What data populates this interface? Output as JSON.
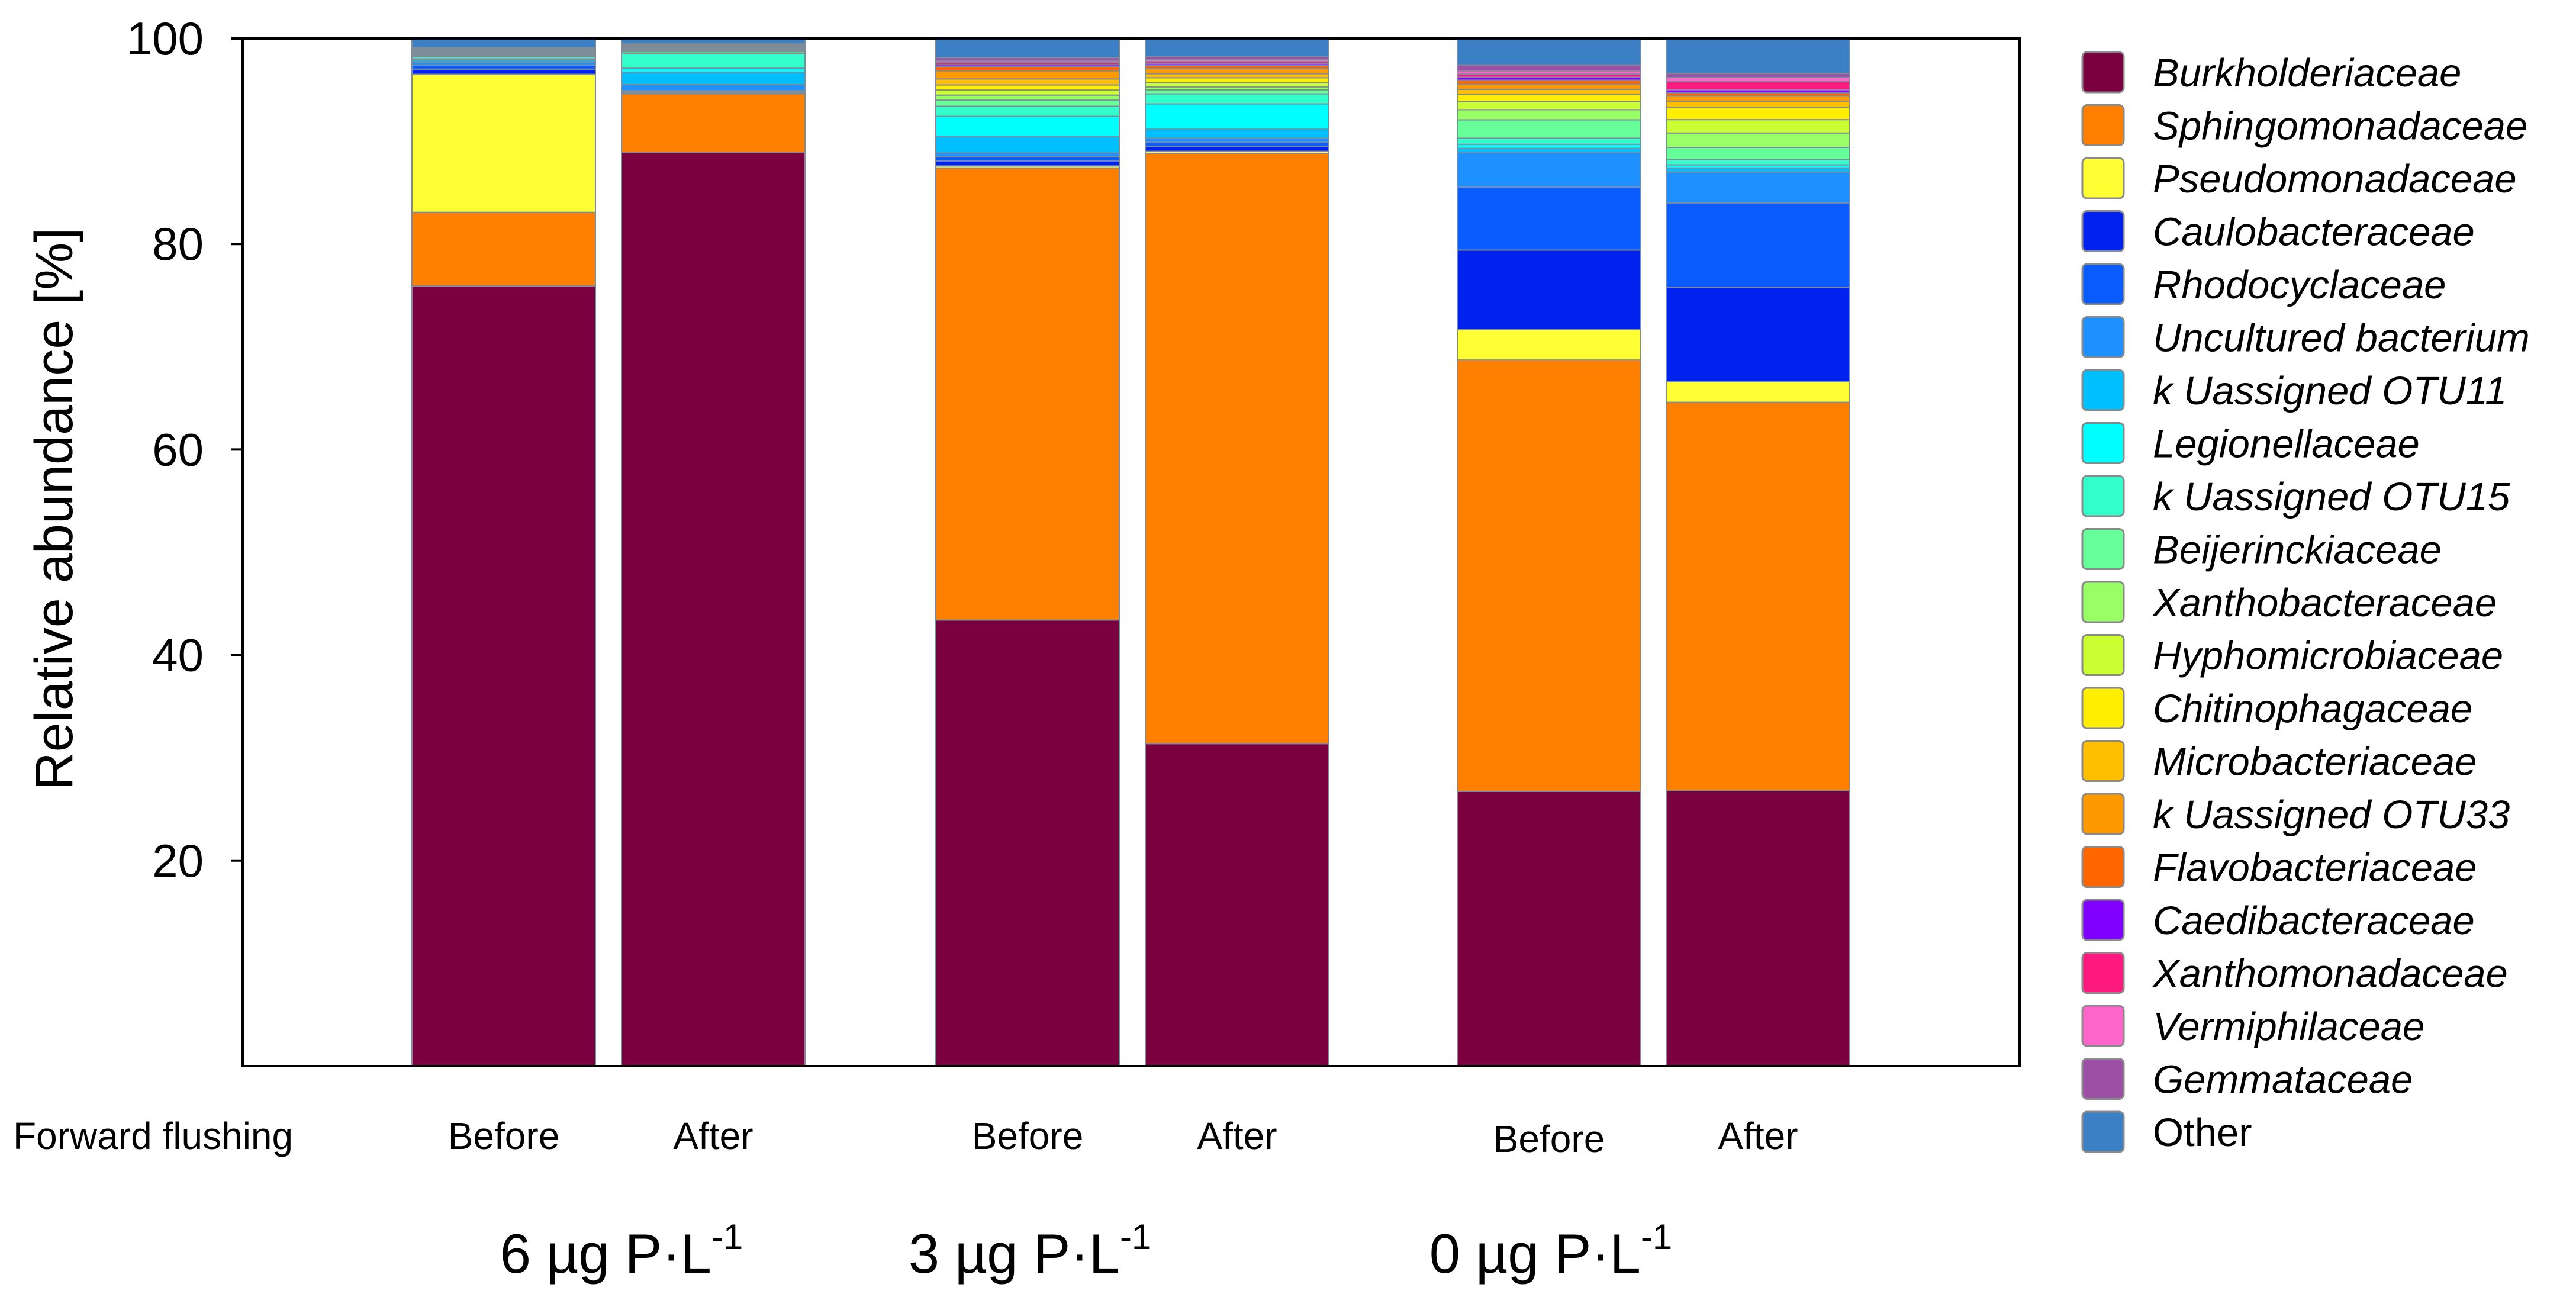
{
  "chart_data": {
    "type": "bar",
    "stacked": true,
    "ylabel": "Relative abundance [%]",
    "ylim": [
      0,
      100
    ],
    "yticks": [
      20,
      40,
      60,
      80,
      100
    ],
    "row_label": "Forward flushing",
    "categories": [
      "Before",
      "After",
      "Before",
      "After",
      "Before",
      "After"
    ],
    "groups": [
      {
        "label": "6 µg P·L",
        "sup": "-1"
      },
      {
        "label": "3 µg P·L",
        "sup": "-1"
      },
      {
        "label": "0 µg P·L",
        "sup": "-1"
      }
    ],
    "series": [
      {
        "name": "Burkholderiaceae",
        "italic": true,
        "color": "#7b0040",
        "values": [
          76.3,
          89.0,
          44.1,
          32.0,
          27.0,
          26.8
        ]
      },
      {
        "name": "Sphingomonadaceae",
        "italic": true,
        "color": "#ff8000",
        "values": [
          7.2,
          5.7,
          44.7,
          58.6,
          42.4,
          37.8
        ]
      },
      {
        "name": "Pseudomonadaceae",
        "italic": true,
        "color": "#ffff33",
        "values": [
          13.5,
          0.1,
          0.2,
          0.2,
          3.0,
          2.0
        ]
      },
      {
        "name": "Caulobacteraceae",
        "italic": true,
        "color": "#0022ee",
        "values": [
          0.5,
          0.1,
          0.5,
          0.5,
          7.8,
          9.2
        ]
      },
      {
        "name": "Rhodocyclaceae",
        "italic": true,
        "color": "#0a5cff",
        "values": [
          0.4,
          0.1,
          0.4,
          0.4,
          6.2,
          8.2
        ]
      },
      {
        "name": "Uncultured bacterium",
        "italic": true,
        "color": "#1e90ff",
        "values": [
          0.3,
          0.6,
          0.4,
          0.4,
          3.4,
          3.0
        ]
      },
      {
        "name": "k Uassigned OTU11",
        "italic": true,
        "color": "#00bfff",
        "values": [
          0.2,
          1.2,
          1.6,
          0.9,
          0.4,
          0.4
        ]
      },
      {
        "name": "Legionellaceae",
        "italic": true,
        "color": "#00ffff",
        "values": [
          0.1,
          0.4,
          2.0,
          2.5,
          0.4,
          0.3
        ]
      },
      {
        "name": "k Uassigned OTU15",
        "italic": true,
        "color": "#33ffcc",
        "values": [
          0.2,
          1.4,
          1.0,
          1.0,
          0.6,
          0.5
        ]
      },
      {
        "name": "Beijerinckiaceae",
        "italic": true,
        "color": "#66ff99",
        "values": [
          0.1,
          0.2,
          0.6,
          0.4,
          1.8,
          1.2
        ]
      },
      {
        "name": "Xanthobacteraceae",
        "italic": true,
        "color": "#99ff66",
        "values": [
          0.1,
          0.1,
          0.5,
          0.3,
          1.0,
          1.4
        ]
      },
      {
        "name": "Hyphomicrobiaceae",
        "italic": true,
        "color": "#ccff33",
        "values": [
          0.1,
          0.1,
          0.5,
          0.4,
          0.8,
          1.3
        ]
      },
      {
        "name": "Chitinophagaceae",
        "italic": true,
        "color": "#ffee00",
        "values": [
          0.1,
          0.1,
          0.5,
          0.5,
          0.7,
          1.2
        ]
      },
      {
        "name": "Microbacteriaceae",
        "italic": true,
        "color": "#ffbf00",
        "values": [
          0.1,
          0.1,
          0.6,
          0.4,
          0.5,
          0.6
        ]
      },
      {
        "name": "k Uassigned OTU33",
        "italic": true,
        "color": "#ff9900",
        "values": [
          0.1,
          0.1,
          0.8,
          0.5,
          0.5,
          0.5
        ]
      },
      {
        "name": "Flavobacteriaceae",
        "italic": true,
        "color": "#ff6600",
        "values": [
          0.1,
          0.1,
          0.4,
          0.3,
          0.4,
          0.3
        ]
      },
      {
        "name": "Caedibacteraceae",
        "italic": true,
        "color": "#8000ff",
        "values": [
          0.05,
          0.05,
          0.2,
          0.2,
          0.3,
          0.3
        ]
      },
      {
        "name": "Xanthomonadaceae",
        "italic": true,
        "color": "#ff1a80",
        "values": [
          0.05,
          0.05,
          0.2,
          0.2,
          0.3,
          0.8
        ]
      },
      {
        "name": "Vermiphilaceae",
        "italic": true,
        "color": "#ff66cc",
        "values": [
          0.05,
          0.05,
          0.2,
          0.2,
          0.3,
          0.4
        ]
      },
      {
        "name": "Gemmataceae",
        "italic": true,
        "color": "#9b4fa5",
        "values": [
          0.05,
          0.05,
          0.3,
          0.3,
          0.6,
          0.4
        ]
      },
      {
        "name": "Other",
        "italic": false,
        "color": "#3b7fc4",
        "values": [
          0.9,
          0.5,
          1.9,
          1.8,
          2.6,
          3.4
        ]
      }
    ]
  }
}
